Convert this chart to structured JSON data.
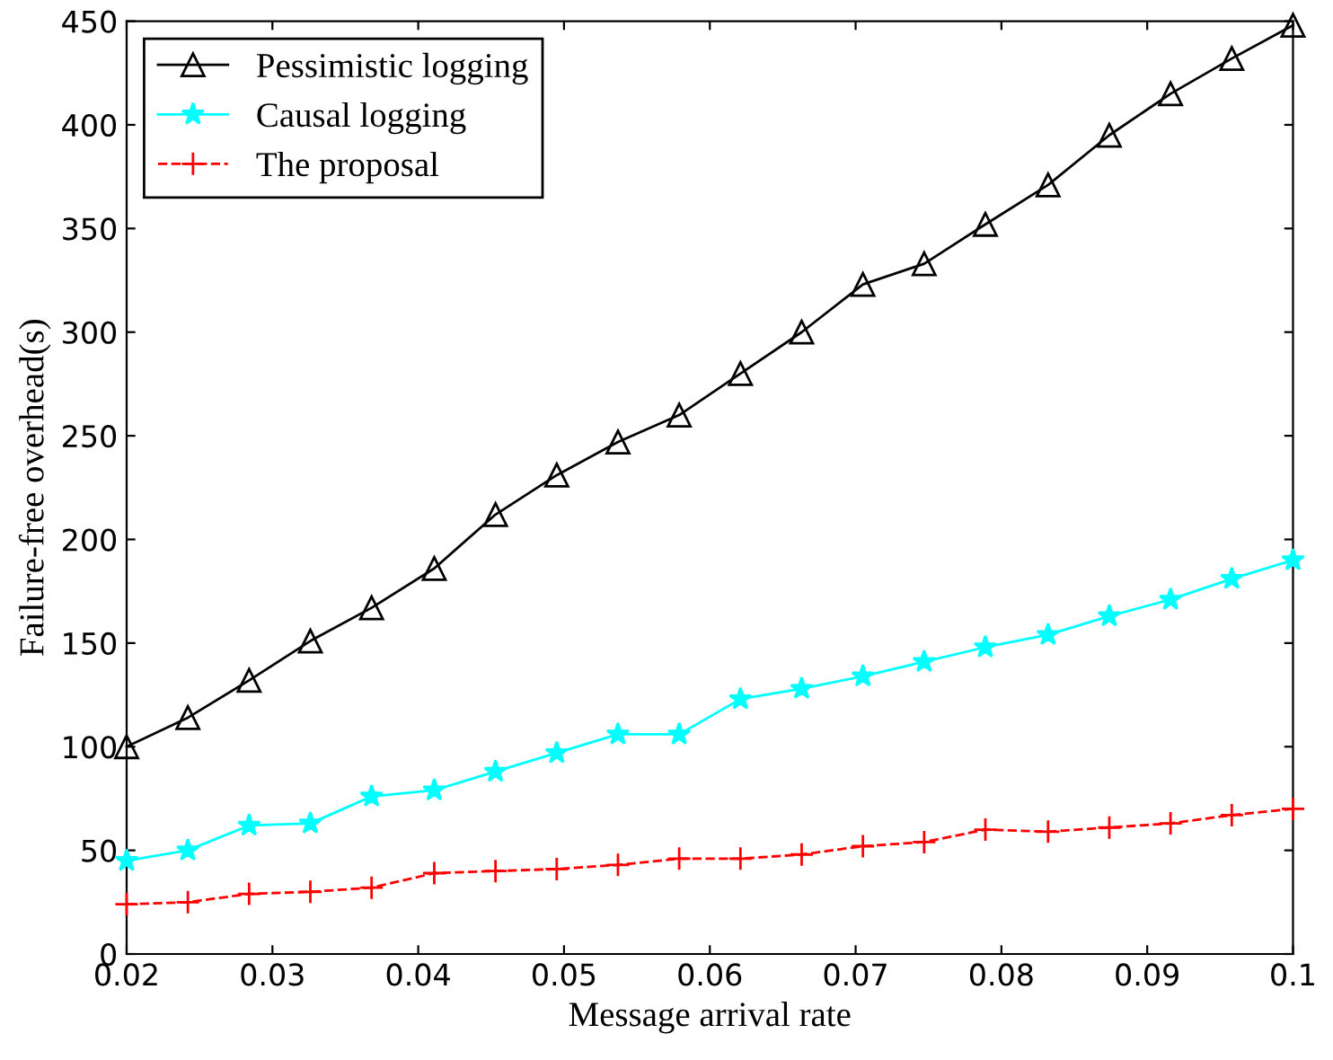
{
  "chart_data": {
    "type": "line",
    "xlabel": "Message arrival rate",
    "ylabel": "Failure-free overhead(s)",
    "x": [
      0.02,
      0.0242,
      0.0284,
      0.0326,
      0.0368,
      0.0411,
      0.0453,
      0.0495,
      0.0537,
      0.0579,
      0.0621,
      0.0663,
      0.0705,
      0.0747,
      0.0789,
      0.0832,
      0.0874,
      0.0916,
      0.0958,
      0.1
    ],
    "series": [
      {
        "name": "Pessimistic logging",
        "color": "#000000",
        "marker": "triangle",
        "line_style": "solid",
        "values": [
          100,
          114,
          132,
          151,
          167,
          186,
          212,
          231,
          247,
          260,
          280,
          300,
          323,
          333,
          352,
          371,
          395,
          415,
          432,
          448
        ]
      },
      {
        "name": "Causal logging",
        "color": "#00ffff",
        "marker": "star",
        "line_style": "solid",
        "values": [
          45,
          50,
          62,
          63,
          76,
          79,
          88,
          97,
          106,
          106,
          123,
          128,
          134,
          141,
          148,
          154,
          163,
          171,
          181,
          190
        ]
      },
      {
        "name": "The proposal",
        "color": "#ff0000",
        "marker": "cross",
        "line_style": "dashed",
        "values": [
          24,
          25,
          29,
          30,
          32,
          39,
          40,
          41,
          43,
          46,
          46,
          48,
          52,
          54,
          60,
          59,
          61,
          63,
          67,
          70
        ]
      }
    ],
    "xlim": [
      0.02,
      0.1
    ],
    "ylim": [
      0,
      450
    ],
    "xticks": [
      0.02,
      0.03,
      0.04,
      0.05,
      0.06,
      0.07,
      0.08,
      0.09,
      0.1
    ],
    "yticks": [
      0,
      50,
      100,
      150,
      200,
      250,
      300,
      350,
      400,
      450
    ],
    "grid": false,
    "legend": "top left"
  }
}
